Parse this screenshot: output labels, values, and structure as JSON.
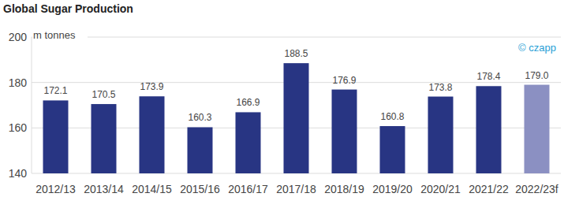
{
  "chart_data": {
    "type": "bar",
    "title": "Global Sugar Production",
    "y_label": "m tonnes",
    "annotations": [
      "© czapp"
    ],
    "categories": [
      "2012/13",
      "2013/14",
      "2014/15",
      "2015/16",
      "2016/17",
      "2017/18",
      "2018/19",
      "2019/20",
      "2020/21",
      "2021/22",
      "2022/23f"
    ],
    "values": [
      172.1,
      170.5,
      173.9,
      160.3,
      166.9,
      188.5,
      176.9,
      160.8,
      173.8,
      178.4,
      179.0
    ],
    "value_labels": [
      "172.1",
      "170.5",
      "173.9",
      "160.3",
      "166.9",
      "188.5",
      "176.9",
      "160.8",
      "173.8",
      "178.4",
      "179.0"
    ],
    "colors": [
      "#283583",
      "#283583",
      "#283583",
      "#283583",
      "#283583",
      "#283583",
      "#283583",
      "#283583",
      "#283583",
      "#283583",
      "#8b90c2"
    ],
    "ylim": [
      140,
      200
    ],
    "yticks": [
      140,
      160,
      180,
      200
    ],
    "grid": true,
    "data_labels": true
  }
}
